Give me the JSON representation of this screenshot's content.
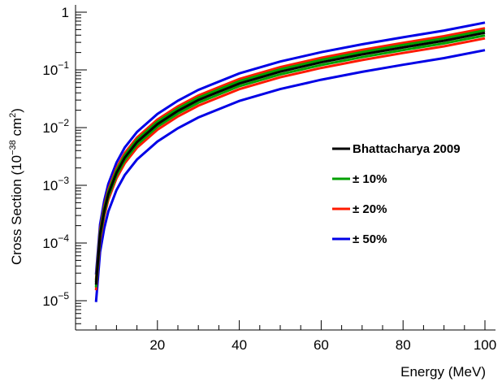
{
  "chart_data": {
    "type": "line",
    "xlabel": "Energy (MeV)",
    "ylabel": {
      "base": "Cross Section (10",
      "exp1": "−38",
      "mid": " cm",
      "exp2": "2",
      "end": ")"
    },
    "xlim": [
      0,
      100
    ],
    "ylim": [
      3e-06,
      1.15
    ],
    "yscale": "log",
    "grid": false,
    "legend_placement": "center-right",
    "x_ticks": [
      20,
      40,
      60,
      80,
      100
    ],
    "x_tick_labels": [
      "20",
      "40",
      "60",
      "80",
      "100"
    ],
    "y_ticks": [
      {
        "value": 1,
        "mantissa": "1",
        "exp": ""
      },
      {
        "value": 0.1,
        "mantissa": "10",
        "exp": "−1"
      },
      {
        "value": 0.01,
        "mantissa": "10",
        "exp": "−2"
      },
      {
        "value": 0.001,
        "mantissa": "10",
        "exp": "−3"
      },
      {
        "value": 0.0001,
        "mantissa": "10",
        "exp": "−4"
      },
      {
        "value": 1e-05,
        "mantissa": "10",
        "exp": "−5"
      }
    ],
    "x": [
      5,
      6,
      7,
      8,
      10,
      12,
      15,
      20,
      25,
      30,
      40,
      50,
      60,
      70,
      80,
      90,
      100
    ],
    "central_values": [
      1.9e-05,
      0.00014,
      0.00036,
      0.0007,
      0.00165,
      0.003,
      0.0056,
      0.0115,
      0.0195,
      0.03,
      0.058,
      0.093,
      0.135,
      0.185,
      0.245,
      0.32,
      0.44
    ],
    "series": [
      {
        "name": "Bhattacharya 2009",
        "color": "#000000",
        "scale": 1.0
      },
      {
        "name": "± 10%",
        "color": "#00a000",
        "scale_band": 0.1
      },
      {
        "name": "± 20%",
        "color": "#ff1a00",
        "scale_band": 0.2
      },
      {
        "name": "± 50%",
        "color": "#0000e6",
        "scale_band": 0.5
      }
    ],
    "legend": [
      {
        "label": "Bhattacharya 2009",
        "color": "#000000"
      },
      {
        "label": "± 10%",
        "color": "#00a000"
      },
      {
        "label": "± 20%",
        "color": "#ff1a00"
      },
      {
        "label": "± 50%",
        "color": "#0000e6"
      }
    ]
  }
}
